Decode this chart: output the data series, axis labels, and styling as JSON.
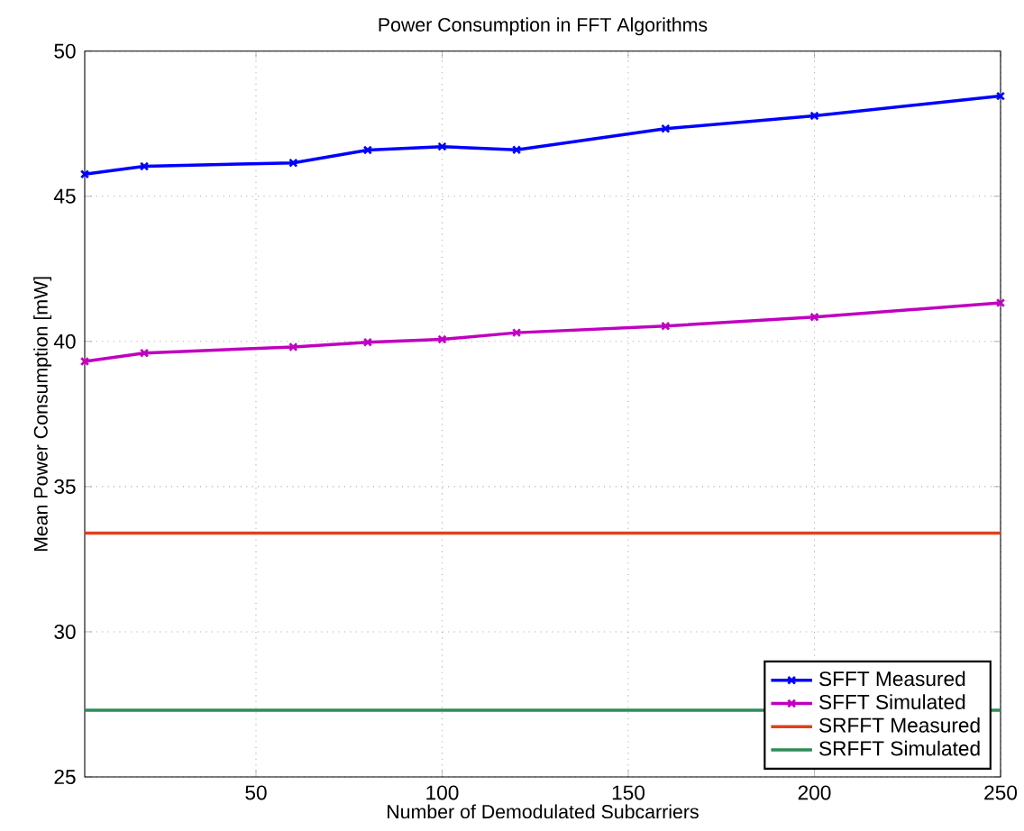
{
  "chart_data": {
    "type": "line",
    "title": "Power Consumption in FFT Algorithms",
    "xlabel": "Number of Demodulated Subcarriers",
    "ylabel": "Mean Power Consumption [mW]",
    "xlim": [
      4,
      250
    ],
    "ylim": [
      25,
      50
    ],
    "xticks": [
      50,
      100,
      150,
      200,
      250
    ],
    "yticks": [
      25,
      30,
      35,
      40,
      45,
      50
    ],
    "grid": true,
    "legend": "bottom right",
    "marker": "cross",
    "line_style": "solid",
    "series": [
      {
        "name": "SFFT Measured",
        "color": "#0000ff",
        "x": [
          4,
          20,
          60,
          80,
          100,
          120,
          160,
          200,
          250
        ],
        "values": [
          45.76,
          46.03,
          46.15,
          46.59,
          46.71,
          46.6,
          47.33,
          47.77,
          48.45
        ]
      },
      {
        "name": "SFFT Simulated",
        "color": "#c000c0",
        "x": [
          4,
          20,
          60,
          80,
          100,
          120,
          160,
          200,
          250
        ],
        "values": [
          39.31,
          39.6,
          39.81,
          39.97,
          40.07,
          40.3,
          40.53,
          40.84,
          41.33
        ]
      },
      {
        "name": "SRFFT Measured",
        "color": "#e0401e",
        "marker": "none",
        "x": [
          4,
          250
        ],
        "values": [
          33.4,
          33.4
        ]
      },
      {
        "name": "SRFFT Simulated",
        "color": "#2e8b57",
        "marker": "none",
        "x": [
          4,
          250
        ],
        "values": [
          27.3,
          27.3
        ]
      }
    ]
  }
}
